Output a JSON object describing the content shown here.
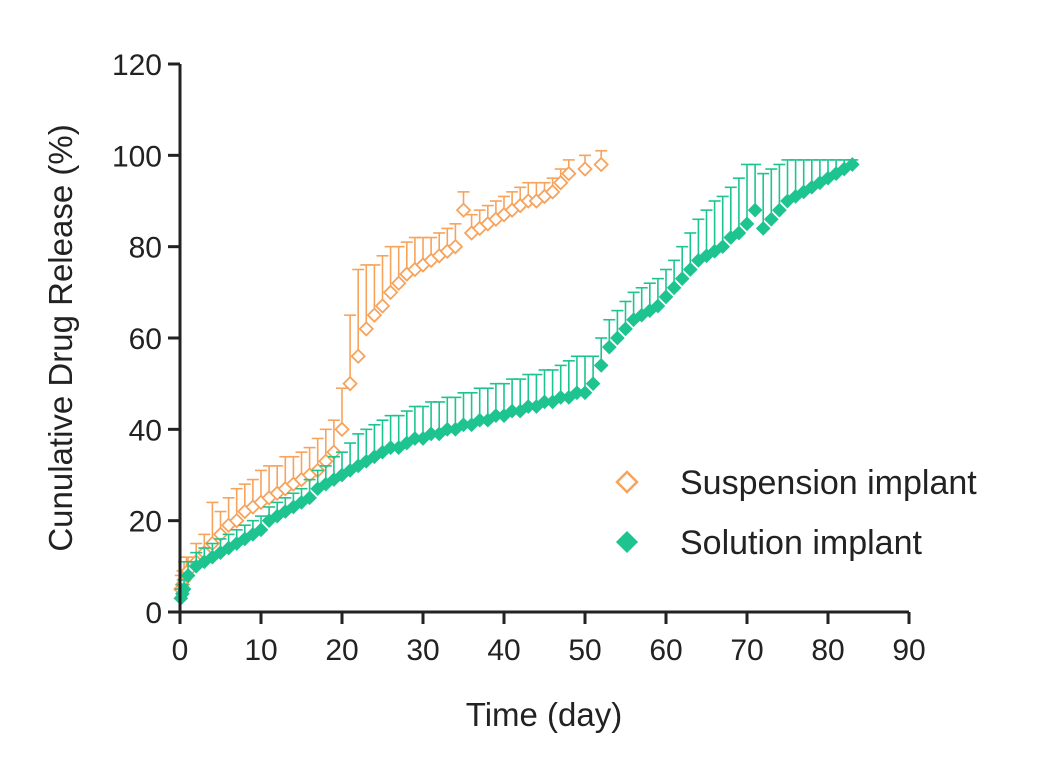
{
  "chart_data": {
    "type": "scatter",
    "title": "",
    "xlabel": "Time (day)",
    "ylabel": "Cunulative Drug Release (%)",
    "xlim": [
      0,
      90
    ],
    "ylim": [
      0,
      120
    ],
    "xticks": [
      0,
      10,
      20,
      30,
      40,
      50,
      60,
      70,
      80,
      90
    ],
    "yticks": [
      0,
      20,
      40,
      60,
      80,
      100,
      120
    ],
    "grid": false,
    "legend_position": "lower-right",
    "error_bars": "upper",
    "series": [
      {
        "name": "Suspension implant",
        "color": "#f7a35c",
        "marker": "open-diamond",
        "x": [
          0.1,
          0.3,
          0.5,
          0.8,
          1,
          2,
          3,
          4,
          5,
          6,
          7,
          8,
          9,
          10,
          11,
          12,
          13,
          14,
          15,
          16,
          17,
          18,
          19,
          20,
          21,
          22,
          23,
          24,
          25,
          26,
          27,
          28,
          29,
          30,
          31,
          32,
          33,
          34,
          35,
          36,
          37,
          38,
          39,
          40,
          41,
          42,
          43,
          44,
          45,
          46,
          47,
          48,
          50,
          52
        ],
        "y": [
          5,
          6,
          7,
          8,
          9,
          11,
          13,
          15,
          17,
          19,
          20,
          22,
          23,
          24,
          25,
          26,
          27,
          28,
          29,
          30,
          31,
          33,
          35,
          40,
          50,
          56,
          62,
          65,
          67,
          70,
          72,
          74,
          75,
          76,
          77,
          78,
          79,
          80,
          88,
          83,
          84,
          85,
          86,
          87,
          88,
          89,
          90,
          90,
          91,
          92,
          94,
          96,
          97,
          98
        ],
        "err": [
          3,
          3,
          4,
          4,
          3,
          4,
          4,
          9,
          5,
          6,
          7,
          6,
          6,
          7,
          7,
          6,
          7,
          6,
          6,
          6,
          7,
          7,
          7,
          9,
          15,
          19,
          14,
          11,
          11,
          10,
          8,
          7,
          7,
          6,
          5,
          5,
          5,
          5,
          4,
          4,
          4,
          4,
          4,
          4,
          4,
          4,
          4,
          4,
          3,
          3,
          3,
          3,
          3,
          3
        ]
      },
      {
        "name": "Solution implant",
        "color": "#1ec48f",
        "marker": "filled-diamond",
        "x": [
          0.1,
          0.3,
          0.5,
          1,
          2,
          3,
          4,
          5,
          6,
          7,
          8,
          9,
          10,
          11,
          12,
          13,
          14,
          15,
          16,
          17,
          18,
          19,
          20,
          21,
          22,
          23,
          24,
          25,
          26,
          27,
          28,
          29,
          30,
          31,
          32,
          33,
          34,
          35,
          36,
          37,
          38,
          39,
          40,
          41,
          42,
          43,
          44,
          45,
          46,
          47,
          48,
          49,
          50,
          51,
          52,
          53,
          54,
          55,
          56,
          57,
          58,
          59,
          60,
          61,
          62,
          63,
          64,
          65,
          66,
          67,
          68,
          69,
          70,
          71,
          72,
          73,
          74,
          75,
          76,
          77,
          78,
          79,
          80,
          81,
          82,
          83
        ],
        "y": [
          3,
          4,
          5,
          8,
          10,
          11,
          12,
          13,
          14,
          15,
          16,
          17,
          18,
          20,
          21,
          22,
          23,
          24,
          25,
          27,
          28,
          29,
          30,
          31,
          32,
          33,
          34,
          35,
          36,
          36,
          37,
          38,
          38,
          39,
          39,
          40,
          40,
          41,
          41,
          42,
          42,
          43,
          43,
          44,
          44,
          45,
          45,
          46,
          46,
          47,
          47,
          48,
          48,
          50,
          54,
          58,
          60,
          62,
          64,
          65,
          66,
          67,
          69,
          71,
          73,
          75,
          77,
          78,
          79,
          80,
          82,
          83,
          85,
          88,
          84,
          86,
          88,
          90,
          91,
          92,
          93,
          94,
          95,
          96,
          97,
          98
        ],
        "err": [
          2,
          2,
          2,
          3,
          3,
          3,
          3,
          3,
          3,
          3,
          3,
          3,
          3,
          3,
          3,
          3,
          3,
          3,
          4,
          4,
          4,
          5,
          5,
          6,
          7,
          7,
          7,
          7,
          7,
          7,
          7,
          7,
          7,
          7,
          7,
          7,
          7,
          7,
          7,
          7,
          7,
          7,
          7,
          7,
          7,
          7,
          7,
          7,
          7,
          7,
          8,
          8,
          8,
          6,
          6,
          6,
          6,
          6,
          6,
          6,
          6,
          6,
          6,
          6,
          7,
          8,
          9,
          10,
          11,
          11,
          11,
          12,
          13,
          10,
          12,
          11,
          10,
          9,
          8,
          7,
          6,
          5,
          4,
          3,
          2,
          1
        ]
      }
    ]
  }
}
